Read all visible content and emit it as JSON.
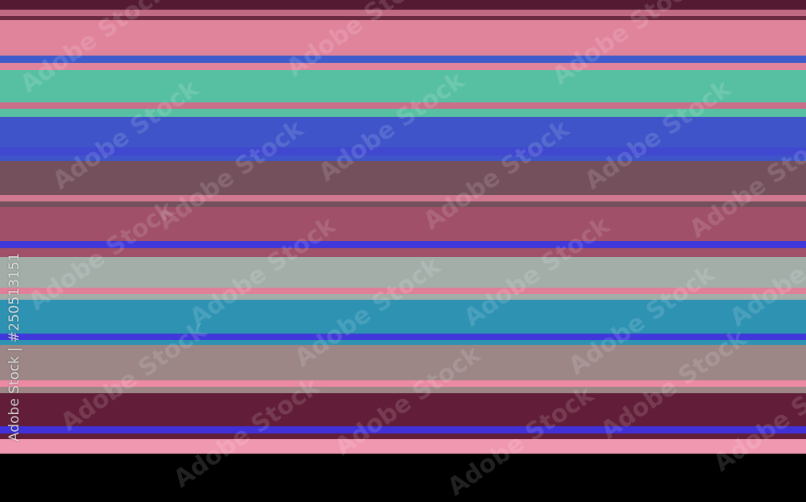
{
  "stripe_colors": [
    "#541a32",
    "#c06a84",
    "#6a2a40",
    "#e0849c",
    "#3e5ccc",
    "#e0849c",
    "#58c0a2",
    "#c8708a",
    "#58c0a2",
    "#3e54c8",
    "#4048d0",
    "#3e54c8",
    "#74505c",
    "#d07890",
    "#74505c",
    "#a05068",
    "#4038d8",
    "#a05068",
    "#a3aea9",
    "#e08098",
    "#a3aea9",
    "#2e92b2",
    "#4038d8",
    "#2e92b2",
    "#9c8686",
    "#ec8aa4",
    "#9c8686",
    "#621e38",
    "#4030d8",
    "#621e38",
    "#f098b0"
  ],
  "watermark": {
    "text": "Adobe Stock"
  },
  "stock_id": "Adobe Stock | #250513151"
}
